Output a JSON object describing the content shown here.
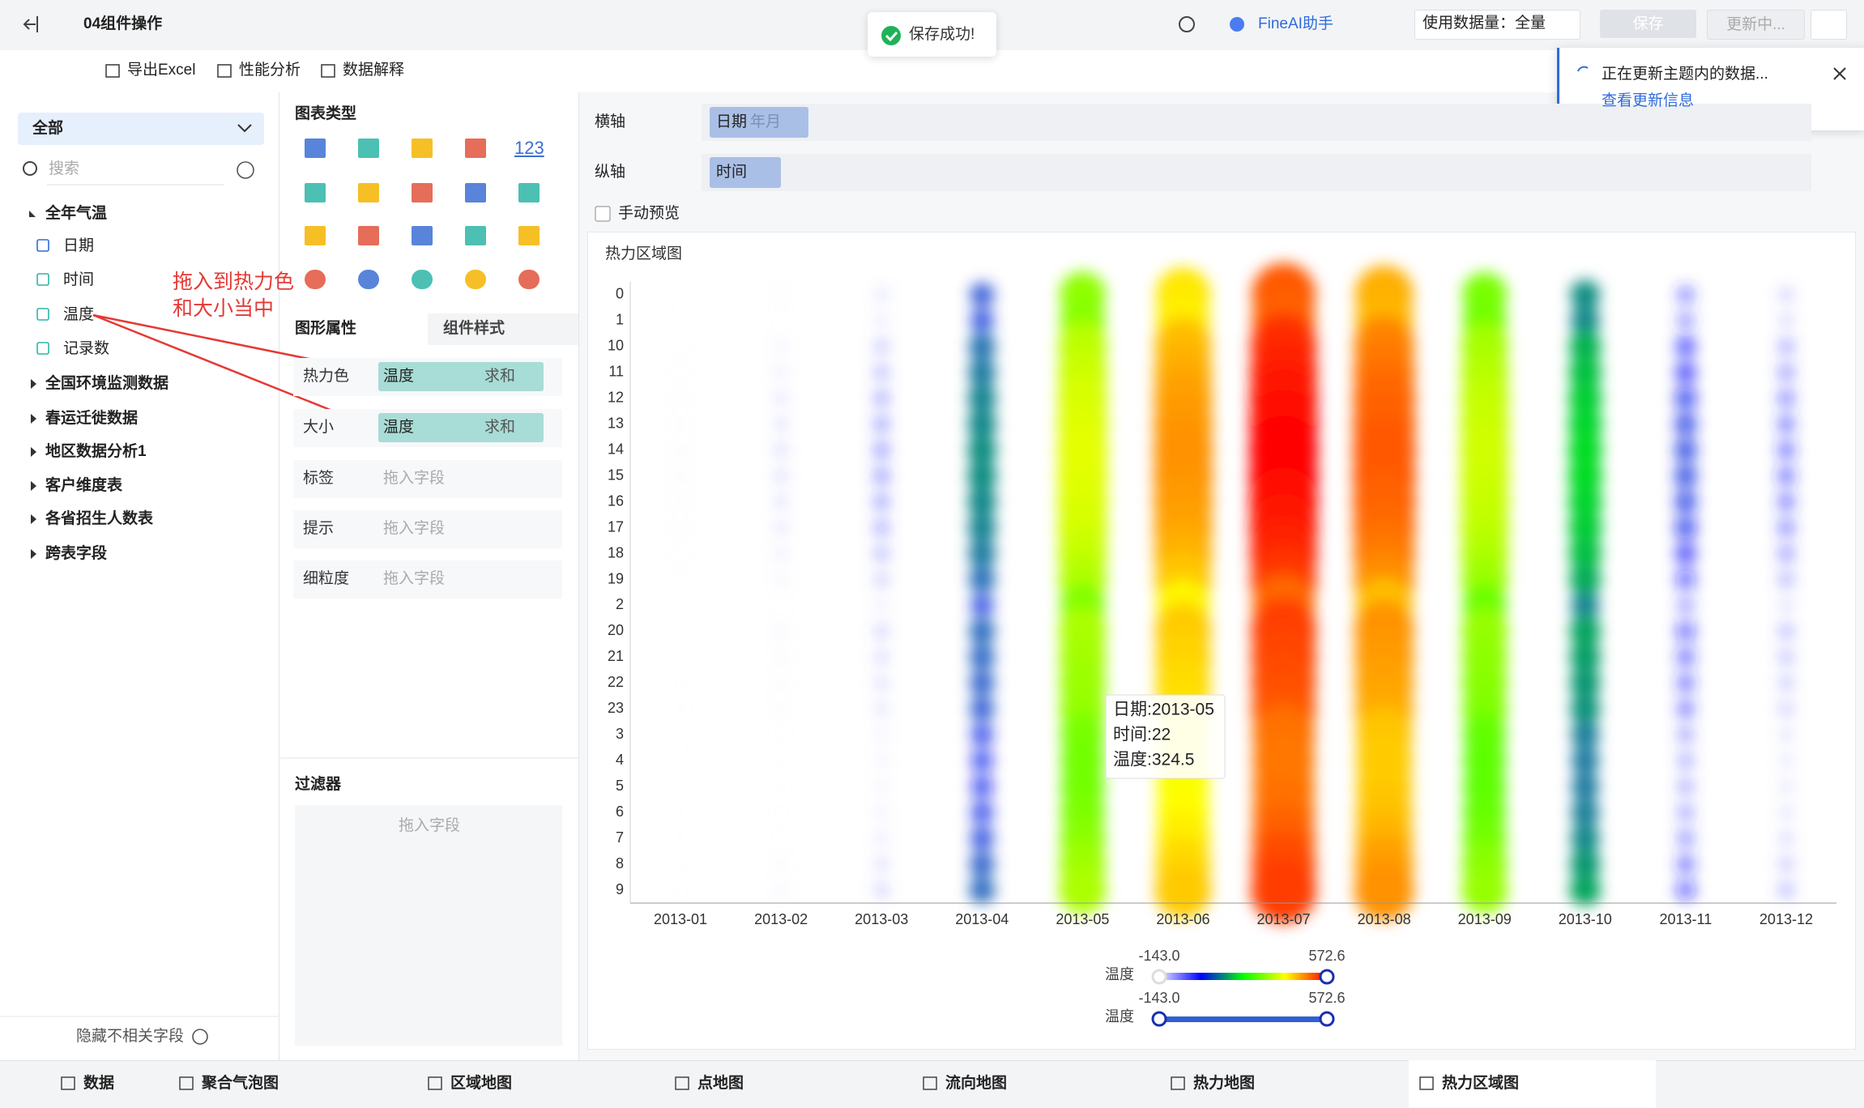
{
  "header": {
    "title": "04组件操作",
    "assistant": "FineAI助手",
    "data_amount": "使用数据量：全量",
    "save": "保存",
    "update": "更新中..."
  },
  "toast": "保存成功!",
  "toolbar": [
    "导出Excel",
    "性能分析",
    "数据解释"
  ],
  "notice": {
    "text": "正在更新主题内的数据...",
    "link": "查看更新信息"
  },
  "data_panel": {
    "scope": "全部",
    "search": "搜索",
    "tables": [
      {
        "name": "全年气温",
        "fields": [
          "日期",
          "时间",
          "温度",
          "记录数"
        ]
      },
      {
        "name": "全国环境监测数据"
      },
      {
        "name": "春运迁徙数据"
      },
      {
        "name": "地区数据分析1"
      },
      {
        "name": "客户维度表"
      },
      {
        "name": "各省招生人数表"
      },
      {
        "name": "跨表字段"
      }
    ],
    "hide": "隐藏不相关字段"
  },
  "annotation": [
    "拖入到热力色",
    "和大小当中"
  ],
  "props_panel": {
    "chart_types_title": "图表类型",
    "number_icon": "123",
    "tabs": [
      "图形属性",
      "组件样式"
    ],
    "rows": [
      {
        "label": "热力色",
        "field": "温度",
        "agg": "求和"
      },
      {
        "label": "大小",
        "field": "温度",
        "agg": "求和"
      },
      {
        "label": "标签",
        "placeholder": "拖入字段"
      },
      {
        "label": "提示",
        "placeholder": "拖入字段"
      },
      {
        "label": "细粒度",
        "placeholder": "拖入字段"
      }
    ],
    "filter": {
      "title": "过滤器",
      "placeholder": "拖入字段"
    }
  },
  "shelf": {
    "x": {
      "label": "横轴",
      "field": "日期",
      "sub": "年月"
    },
    "y": {
      "label": "纵轴",
      "field": "时间"
    },
    "preview": "手动预览"
  },
  "chart_data": {
    "type": "heatmap",
    "title": "热力区域图",
    "categories": [
      "2013-01",
      "2013-02",
      "2013-03",
      "2013-04",
      "2013-05",
      "2013-06",
      "2013-07",
      "2013-08",
      "2013-09",
      "2013-10",
      "2013-11",
      "2013-12"
    ],
    "y_categories": [
      "0",
      "1",
      "10",
      "11",
      "12",
      "13",
      "14",
      "15",
      "16",
      "17",
      "18",
      "19",
      "2",
      "20",
      "21",
      "22",
      "23",
      "3",
      "4",
      "5",
      "6",
      "7",
      "8",
      "9"
    ],
    "values": [
      [
        -140,
        -142,
        -128,
        -123,
        -118,
        -115,
        -110,
        -110,
        -115,
        -118,
        -123,
        -130,
        -143,
        -135,
        -137,
        -138,
        -140,
        -143,
        -143,
        -143,
        -143,
        -141,
        -138,
        -135
      ],
      [
        -120,
        -125,
        -90,
        -80,
        -70,
        -65,
        -60,
        -60,
        -65,
        -70,
        -80,
        -95,
        -130,
        -100,
        -105,
        -110,
        -115,
        -135,
        -140,
        -140,
        -135,
        -125,
        -110,
        -100
      ],
      [
        -70,
        -75,
        -40,
        -30,
        -20,
        -15,
        -10,
        -10,
        -15,
        -20,
        -30,
        -45,
        -80,
        -50,
        -55,
        -60,
        -65,
        -85,
        -90,
        -90,
        -85,
        -75,
        -60,
        -50
      ],
      [
        70,
        65,
        100,
        110,
        120,
        125,
        130,
        130,
        125,
        120,
        110,
        95,
        60,
        90,
        85,
        80,
        75,
        55,
        50,
        50,
        55,
        65,
        80,
        90
      ],
      [
        315,
        310,
        345,
        355,
        365,
        370,
        375,
        375,
        370,
        365,
        355,
        340,
        305,
        335,
        330,
        324.5,
        320,
        300,
        295,
        295,
        300,
        310,
        325,
        335
      ],
      [
        410,
        405,
        440,
        450,
        460,
        465,
        470,
        470,
        465,
        460,
        450,
        435,
        400,
        430,
        425,
        420,
        415,
        395,
        390,
        390,
        395,
        405,
        420,
        430
      ],
      [
        510,
        505,
        540,
        550,
        560,
        565,
        570,
        570,
        565,
        560,
        550,
        535,
        500,
        530,
        525,
        520,
        515,
        495,
        490,
        490,
        495,
        505,
        520,
        530
      ],
      [
        450,
        445,
        480,
        490,
        500,
        505,
        510,
        510,
        505,
        500,
        490,
        475,
        440,
        470,
        465,
        460,
        455,
        435,
        430,
        430,
        435,
        445,
        460,
        470
      ],
      [
        300,
        295,
        330,
        340,
        350,
        355,
        360,
        360,
        355,
        350,
        340,
        325,
        290,
        320,
        315,
        310,
        305,
        285,
        280,
        280,
        285,
        295,
        310,
        320
      ],
      [
        130,
        125,
        160,
        170,
        180,
        185,
        190,
        190,
        185,
        180,
        170,
        155,
        120,
        150,
        145,
        140,
        135,
        115,
        110,
        110,
        115,
        125,
        140,
        150
      ],
      [
        0,
        -5,
        30,
        40,
        50,
        55,
        60,
        60,
        55,
        50,
        40,
        25,
        -10,
        20,
        15,
        10,
        5,
        -15,
        -20,
        -20,
        -15,
        -5,
        10,
        20
      ],
      [
        -50,
        -55,
        -20,
        -10,
        0,
        5,
        10,
        10,
        5,
        0,
        -10,
        -25,
        -60,
        -30,
        -35,
        -40,
        -45,
        -65,
        -70,
        -70,
        -65,
        -55,
        -40,
        -30
      ]
    ],
    "color_legend": {
      "name": "温度",
      "range": [
        {
          "value": -143,
          "label": "-143.0"
        },
        {
          "value": 572.6,
          "label": "572.6"
        }
      ],
      "colors": [
        "#e8e8ff",
        "#0000ff",
        "#00ff00",
        "#ffff00",
        "#ff0000"
      ]
    },
    "size_legend": {
      "name": "温度",
      "range": [
        {
          "value": -143,
          "label": "-143.0"
        },
        {
          "value": 572.6,
          "label": "572.6"
        }
      ],
      "color": "#2f5fd6"
    },
    "tooltip": [
      "日期:2013-05",
      "时间:22",
      "温度:324.5"
    ]
  },
  "tabs": [
    "数据",
    "聚合气泡图",
    "区域地图",
    "点地图",
    "流向地图",
    "热力地图",
    "热力区域图"
  ]
}
